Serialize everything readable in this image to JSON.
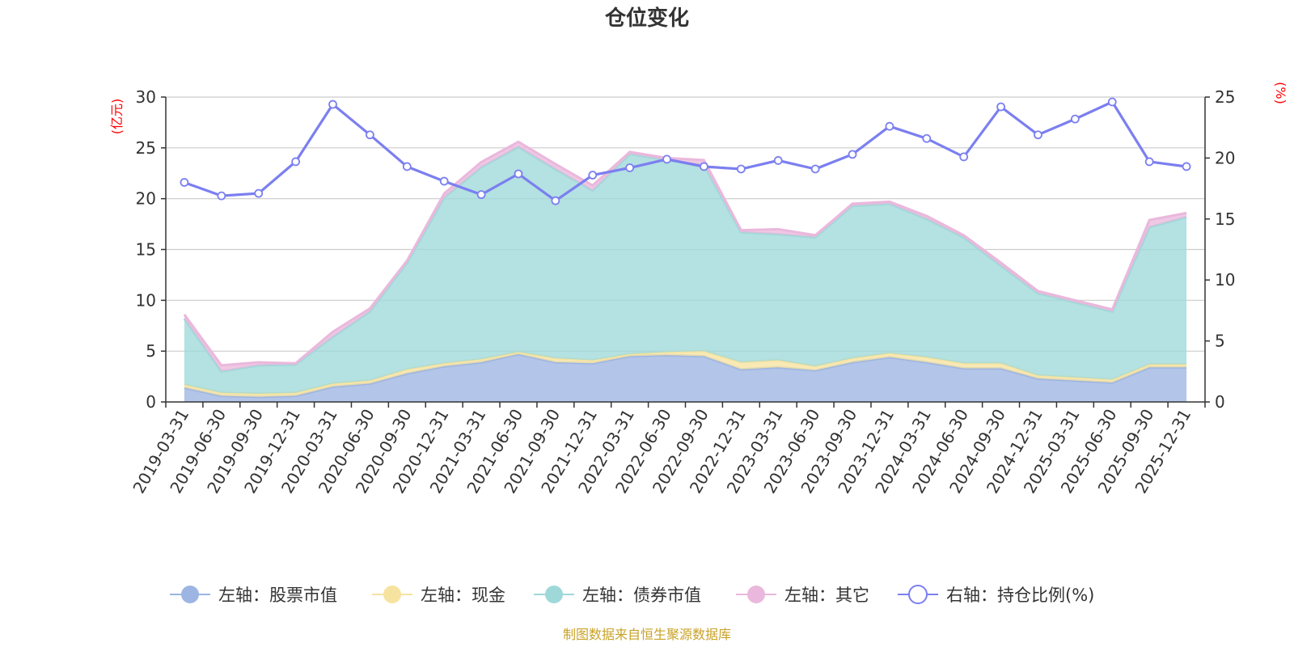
{
  "chart_data": {
    "type": "area",
    "title": "仓位变化",
    "left_axis": {
      "unit": "(亿元)",
      "ylim": [
        0,
        30
      ],
      "ticks": [
        0,
        5,
        10,
        15,
        20,
        25,
        30
      ],
      "tick_labels": [
        "0",
        "5",
        "10",
        "15",
        "20",
        "25",
        "30"
      ]
    },
    "right_axis": {
      "unit": "(%)",
      "ylim": [
        0,
        25
      ],
      "ticks": [
        0,
        5,
        10,
        15,
        20,
        25
      ],
      "tick_labels": [
        "0",
        "5",
        "10",
        "15",
        "20",
        "25"
      ]
    },
    "categories": [
      "2019-03-31",
      "2019-06-30",
      "2019-09-30",
      "2019-12-31",
      "2020-03-31",
      "2020-06-30",
      "2020-09-30",
      "2020-12-31",
      "2021-03-31",
      "2021-06-30",
      "2021-09-30",
      "2021-12-31",
      "2022-03-31",
      "2022-06-30",
      "2022-09-30",
      "2022-12-31",
      "2023-03-31",
      "2023-06-30",
      "2023-09-30",
      "2023-12-31",
      "2024-03-31",
      "2024-06-30",
      "2024-09-30",
      "2024-12-31",
      "2025-03-31",
      "2025-06-30",
      "2025-09-30",
      "2025-12-31"
    ],
    "series": [
      {
        "name": "左轴：股票市值",
        "axis": "left",
        "stack": true,
        "color": "#9db5e2",
        "values": [
          1.4,
          0.6,
          0.5,
          0.6,
          1.5,
          1.8,
          2.8,
          3.5,
          3.9,
          4.7,
          3.9,
          3.8,
          4.5,
          4.6,
          4.5,
          3.2,
          3.4,
          3.1,
          3.9,
          4.4,
          3.9,
          3.3,
          3.3,
          2.3,
          2.1,
          1.9,
          3.4,
          3.4
        ]
      },
      {
        "name": "左轴：现金",
        "axis": "left",
        "stack": true,
        "color": "#f6e3a0",
        "values": [
          0.3,
          0.3,
          0.3,
          0.3,
          0.3,
          0.3,
          0.4,
          0.3,
          0.3,
          0.2,
          0.4,
          0.3,
          0.2,
          0.3,
          0.5,
          0.7,
          0.7,
          0.4,
          0.4,
          0.4,
          0.5,
          0.5,
          0.5,
          0.3,
          0.3,
          0.3,
          0.3,
          0.3
        ]
      },
      {
        "name": "左轴：债券市值",
        "axis": "left",
        "stack": true,
        "color": "#9fd8d9",
        "values": [
          6.5,
          2.1,
          2.8,
          2.8,
          4.6,
          6.8,
          10.5,
          16.3,
          18.9,
          20.2,
          18.6,
          16.7,
          19.7,
          18.9,
          18.3,
          12.8,
          12.4,
          12.7,
          15.0,
          14.7,
          13.6,
          12.4,
          9.6,
          8.1,
          7.4,
          6.7,
          13.5,
          14.5
        ]
      },
      {
        "name": "左轴：其它",
        "axis": "left",
        "stack": true,
        "color": "#eab8dc",
        "values": [
          0.4,
          0.6,
          0.3,
          0.1,
          0.5,
          0.3,
          0.2,
          0.4,
          0.5,
          0.5,
          0.5,
          0.5,
          0.2,
          0.2,
          0.5,
          0.2,
          0.5,
          0.2,
          0.2,
          0.2,
          0.3,
          0.2,
          0.3,
          0.2,
          0.2,
          0.2,
          0.7,
          0.4
        ]
      },
      {
        "name": "右轴：持仓比例(%)",
        "axis": "right",
        "type": "line",
        "color": "#7b7ff0",
        "values": [
          18.0,
          16.9,
          17.1,
          19.7,
          24.4,
          21.9,
          19.3,
          18.1,
          17.0,
          18.7,
          16.5,
          18.6,
          19.2,
          19.9,
          19.3,
          19.1,
          19.8,
          19.1,
          20.3,
          22.6,
          21.6,
          20.1,
          24.2,
          21.9,
          23.2,
          24.6,
          19.7,
          19.3
        ]
      }
    ],
    "legend_position": "bottom",
    "grid": true
  },
  "footer": {
    "source": "制图数据来自恒生聚源数据库"
  }
}
